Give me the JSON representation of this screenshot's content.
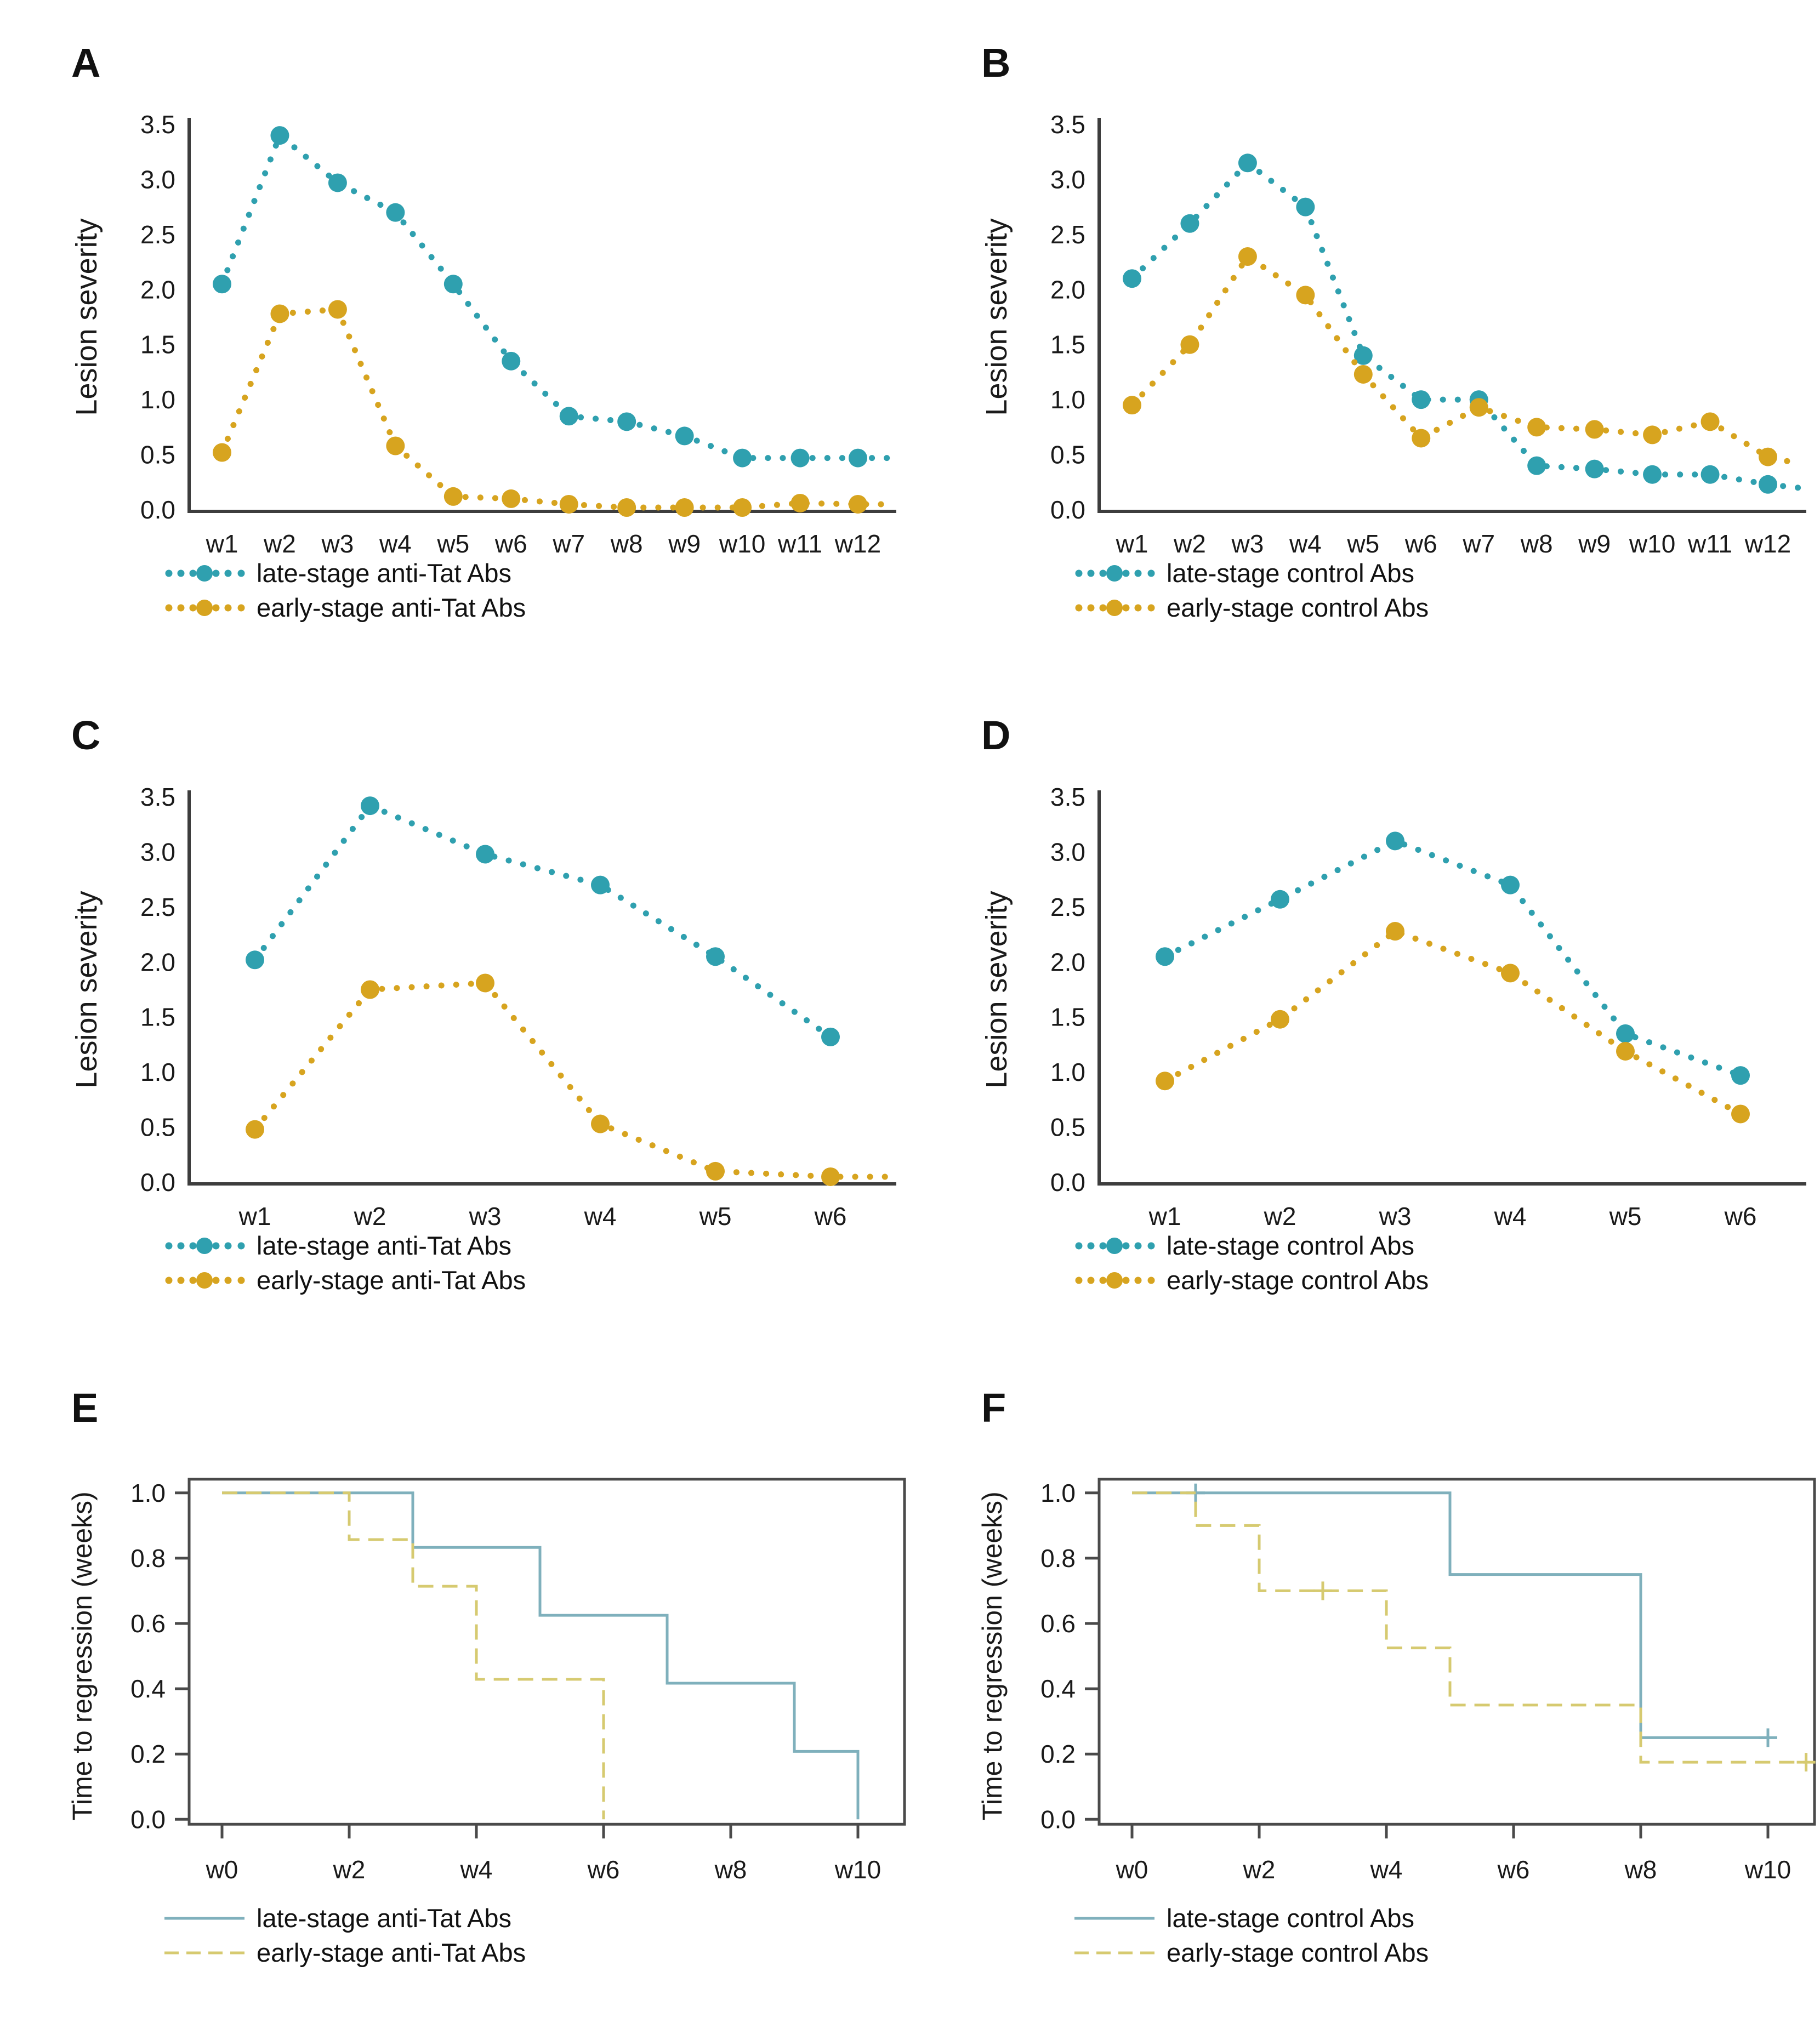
{
  "colors": {
    "teal": "#2FA0AF",
    "gold": "#D7A41F",
    "teal_light": "#7FB0BC",
    "gold_light": "#D6CA70",
    "axis": "#3D3D3D",
    "frame": "#4A4A4A",
    "text": "#1A1A1A"
  },
  "panels": [
    {
      "label": "A",
      "chart_data": {
        "type": "line",
        "ylabel": "Lesion severity",
        "ylim": [
          0,
          3.5
        ],
        "yticks": [
          "0.0",
          "0.5",
          "1.0",
          "1.5",
          "2.0",
          "2.5",
          "3.0",
          "3.5"
        ],
        "categories": [
          "w1",
          "w2",
          "w3",
          "w4",
          "w5",
          "w6",
          "w7",
          "w8",
          "w9",
          "w10",
          "w11",
          "w12"
        ],
        "series": [
          {
            "name": "late-stage anti-Tat Abs",
            "color": "teal",
            "values": [
              2.05,
              3.4,
              2.97,
              2.7,
              2.05,
              1.35,
              0.85,
              0.8,
              0.67,
              0.47,
              0.47,
              0.47
            ],
            "tail": 0.47
          },
          {
            "name": "early-stage anti-Tat Abs",
            "color": "gold",
            "values": [
              0.52,
              1.78,
              1.82,
              0.58,
              0.12,
              0.1,
              0.05,
              0.02,
              0.02,
              0.02,
              0.06,
              0.05
            ],
            "tail": 0.05
          }
        ]
      }
    },
    {
      "label": "B",
      "chart_data": {
        "type": "line",
        "ylabel": "Lesion severity",
        "ylim": [
          0,
          3.5
        ],
        "yticks": [
          "0.0",
          "0.5",
          "1.0",
          "1.5",
          "2.0",
          "2.5",
          "3.0",
          "3.5"
        ],
        "categories": [
          "w1",
          "w2",
          "w3",
          "w4",
          "w5",
          "w6",
          "w7",
          "w8",
          "w9",
          "w10",
          "w11",
          "w12"
        ],
        "series": [
          {
            "name": "late-stage control Abs",
            "color": "teal",
            "values": [
              2.1,
              2.6,
              3.15,
              2.75,
              1.4,
              1.0,
              1.0,
              0.4,
              0.37,
              0.32,
              0.32,
              0.23
            ],
            "tail": 0.2
          },
          {
            "name": "early-stage control Abs",
            "color": "gold",
            "values": [
              0.95,
              1.5,
              2.3,
              1.95,
              1.23,
              0.65,
              0.93,
              0.75,
              0.73,
              0.68,
              0.8,
              0.48
            ],
            "tail": 0.42
          }
        ]
      }
    },
    {
      "label": "C",
      "chart_data": {
        "type": "line",
        "ylabel": "Lesion severity",
        "ylim": [
          0,
          3.5
        ],
        "yticks": [
          "0.0",
          "0.5",
          "1.0",
          "1.5",
          "2.0",
          "2.5",
          "3.0",
          "3.5"
        ],
        "categories": [
          "w1",
          "w2",
          "w3",
          "w4",
          "w5",
          "w6"
        ],
        "series": [
          {
            "name": "late-stage anti-Tat Abs",
            "color": "teal",
            "values": [
              2.02,
              3.42,
              2.98,
              2.7,
              2.05,
              1.32
            ],
            "tail": null
          },
          {
            "name": "early-stage anti-Tat Abs",
            "color": "gold",
            "values": [
              0.48,
              1.75,
              1.81,
              0.53,
              0.1,
              0.05
            ],
            "tail": 0.05
          }
        ]
      }
    },
    {
      "label": "D",
      "chart_data": {
        "type": "line",
        "ylabel": "Lesion severity",
        "ylim": [
          0,
          3.5
        ],
        "yticks": [
          "0.0",
          "0.5",
          "1.0",
          "1.5",
          "2.0",
          "2.5",
          "3.0",
          "3.5"
        ],
        "categories": [
          "w1",
          "w2",
          "w3",
          "w4",
          "w5",
          "w6"
        ],
        "series": [
          {
            "name": "late-stage control Abs",
            "color": "teal",
            "values": [
              2.05,
              2.57,
              3.1,
              2.7,
              1.35,
              0.97
            ],
            "tail": null
          },
          {
            "name": "early-stage control Abs",
            "color": "gold",
            "values": [
              0.92,
              1.48,
              2.28,
              1.9,
              1.19,
              0.62
            ],
            "tail": null
          }
        ]
      }
    },
    {
      "label": "E",
      "chart_data": {
        "type": "step",
        "ylabel": "Time to regression (weeks)",
        "ylim": [
          0,
          1.0
        ],
        "yticks": [
          "0.0",
          "0.2",
          "0.4",
          "0.6",
          "0.8",
          "1.0"
        ],
        "xtick_values": [
          0,
          2,
          4,
          6,
          8,
          10
        ],
        "xtick_labels": [
          "w0",
          "w2",
          "w4",
          "w6",
          "w8",
          "w10"
        ],
        "series": [
          {
            "name": "late-stage anti-Tat Abs",
            "color": "teal_light",
            "dash": false,
            "points": [
              [
                0,
                1.0
              ],
              [
                3,
                1.0
              ],
              [
                3,
                0.833
              ],
              [
                5,
                0.833
              ],
              [
                5,
                0.625
              ],
              [
                7,
                0.625
              ],
              [
                7,
                0.417
              ],
              [
                9,
                0.417
              ],
              [
                9,
                0.208
              ],
              [
                10,
                0.208
              ],
              [
                10,
                0.0
              ]
            ],
            "censors": []
          },
          {
            "name": "early-stage anti-Tat Abs",
            "color": "gold_light",
            "dash": true,
            "points": [
              [
                0,
                1.0
              ],
              [
                2,
                1.0
              ],
              [
                2,
                0.857
              ],
              [
                3,
                0.857
              ],
              [
                3,
                0.714
              ],
              [
                4,
                0.714
              ],
              [
                4,
                0.429
              ],
              [
                6,
                0.429
              ],
              [
                6,
                0.0
              ]
            ],
            "censors": []
          }
        ]
      }
    },
    {
      "label": "F",
      "chart_data": {
        "type": "step",
        "ylabel": "Time to regression (weeks)",
        "ylim": [
          0,
          1.0
        ],
        "yticks": [
          "0.0",
          "0.2",
          "0.4",
          "0.6",
          "0.8",
          "1.0"
        ],
        "xtick_values": [
          0,
          2,
          4,
          6,
          8,
          10
        ],
        "xtick_labels": [
          "w0",
          "w2",
          "w4",
          "w6",
          "w8",
          "w10"
        ],
        "series": [
          {
            "name": "late-stage control Abs",
            "color": "teal_light",
            "dash": false,
            "points": [
              [
                0,
                1.0
              ],
              [
                5,
                1.0
              ],
              [
                5,
                0.75
              ],
              [
                8,
                0.75
              ],
              [
                8,
                0.25
              ],
              [
                10,
                0.25
              ]
            ],
            "censors": [
              [
                1,
                1.0
              ],
              [
                10,
                0.25
              ]
            ]
          },
          {
            "name": "early-stage control Abs",
            "color": "gold_light",
            "dash": true,
            "points": [
              [
                0,
                1.0
              ],
              [
                1,
                1.0
              ],
              [
                1,
                0.9
              ],
              [
                2,
                0.9
              ],
              [
                2,
                0.7
              ],
              [
                4,
                0.7
              ],
              [
                4,
                0.525
              ],
              [
                5,
                0.525
              ],
              [
                5,
                0.35
              ],
              [
                8,
                0.35
              ],
              [
                8,
                0.175
              ],
              [
                10.6,
                0.175
              ]
            ],
            "censors": [
              [
                3,
                0.7
              ],
              [
                10.6,
                0.175
              ]
            ]
          }
        ]
      }
    }
  ]
}
